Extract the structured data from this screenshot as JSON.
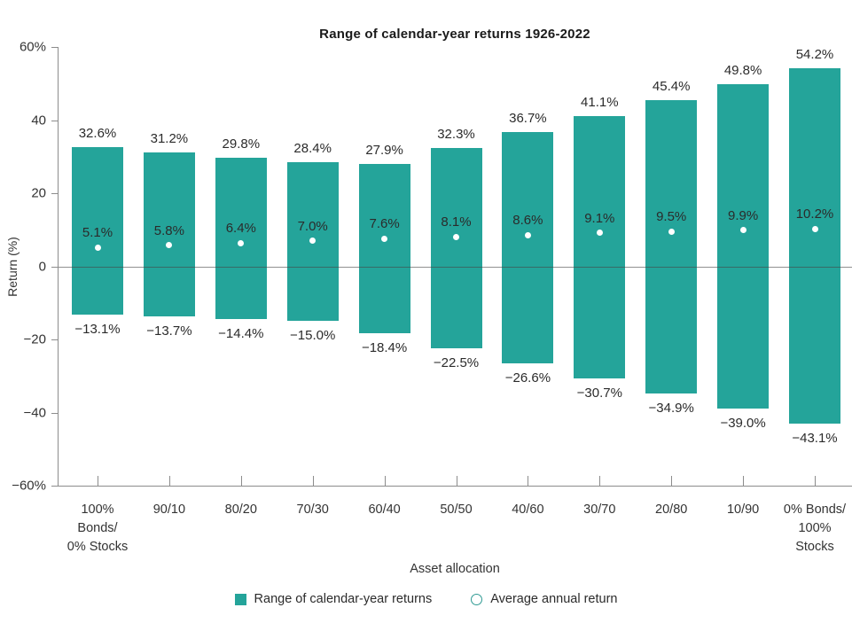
{
  "chart_data": {
    "type": "bar",
    "title": "Range of calendar-year returns 1926-2022",
    "xlabel": "Asset allocation",
    "ylabel": "Return (%)",
    "ylim": [
      -60,
      60
    ],
    "grid": "zero-line-only",
    "bar_color": "#24a49a",
    "dot_color": "#ffffff",
    "y_ticks": [
      {
        "value": 60,
        "label": "60%"
      },
      {
        "value": 40,
        "label": "40"
      },
      {
        "value": 20,
        "label": "20"
      },
      {
        "value": 0,
        "label": "0"
      },
      {
        "value": -20,
        "label": "−20"
      },
      {
        "value": -40,
        "label": "−40"
      },
      {
        "value": -60,
        "label": "−60%"
      }
    ],
    "bars": [
      {
        "category": "100%\nBonds/\n0% Stocks",
        "max": 32.6,
        "avg": 5.1,
        "min": -13.1,
        "max_label": "32.6%",
        "avg_label": "5.1%",
        "min_label": "−13.1%"
      },
      {
        "category": "90/10",
        "max": 31.2,
        "avg": 5.8,
        "min": -13.7,
        "max_label": "31.2%",
        "avg_label": "5.8%",
        "min_label": "−13.7%"
      },
      {
        "category": "80/20",
        "max": 29.8,
        "avg": 6.4,
        "min": -14.4,
        "max_label": "29.8%",
        "avg_label": "6.4%",
        "min_label": "−14.4%"
      },
      {
        "category": "70/30",
        "max": 28.4,
        "avg": 7.0,
        "min": -15.0,
        "max_label": "28.4%",
        "avg_label": "7.0%",
        "min_label": "−15.0%"
      },
      {
        "category": "60/40",
        "max": 27.9,
        "avg": 7.6,
        "min": -18.4,
        "max_label": "27.9%",
        "avg_label": "7.6%",
        "min_label": "−18.4%"
      },
      {
        "category": "50/50",
        "max": 32.3,
        "avg": 8.1,
        "min": -22.5,
        "max_label": "32.3%",
        "avg_label": "8.1%",
        "min_label": "−22.5%"
      },
      {
        "category": "40/60",
        "max": 36.7,
        "avg": 8.6,
        "min": -26.6,
        "max_label": "36.7%",
        "avg_label": "8.6%",
        "min_label": "−26.6%"
      },
      {
        "category": "30/70",
        "max": 41.1,
        "avg": 9.1,
        "min": -30.7,
        "max_label": "41.1%",
        "avg_label": "9.1%",
        "min_label": "−30.7%"
      },
      {
        "category": "20/80",
        "max": 45.4,
        "avg": 9.5,
        "min": -34.9,
        "max_label": "45.4%",
        "avg_label": "9.5%",
        "min_label": "−34.9%"
      },
      {
        "category": "10/90",
        "max": 49.8,
        "avg": 9.9,
        "min": -39.0,
        "max_label": "49.8%",
        "avg_label": "9.9%",
        "min_label": "−39.0%"
      },
      {
        "category": "0% Bonds/\n100%\nStocks",
        "max": 54.2,
        "avg": 10.2,
        "min": -43.1,
        "max_label": "54.2%",
        "avg_label": "10.2%",
        "min_label": "−43.1%"
      }
    ],
    "legend": [
      {
        "icon": "square",
        "color": "#24a49a",
        "label": "Range of calendar-year returns"
      },
      {
        "icon": "circle-outline",
        "color": "#2f9a93",
        "label": "Average annual return"
      }
    ]
  }
}
